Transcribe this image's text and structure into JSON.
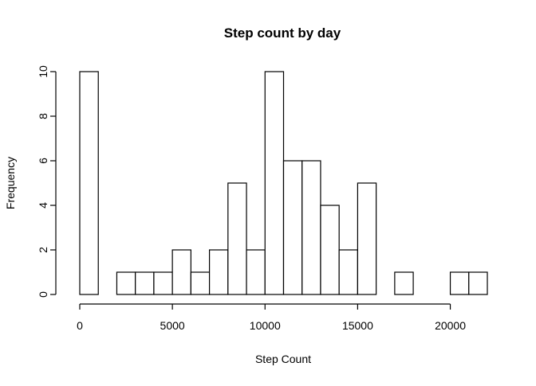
{
  "chart_data": {
    "type": "bar",
    "title": "Step count by day",
    "xlabel": "Step Count",
    "ylabel": "Frequency",
    "bin_width": 1000,
    "bins": [
      {
        "start": 0,
        "end": 1000,
        "count": 10
      },
      {
        "start": 1000,
        "end": 2000,
        "count": 0
      },
      {
        "start": 2000,
        "end": 3000,
        "count": 1
      },
      {
        "start": 3000,
        "end": 4000,
        "count": 1
      },
      {
        "start": 4000,
        "end": 5000,
        "count": 1
      },
      {
        "start": 5000,
        "end": 6000,
        "count": 2
      },
      {
        "start": 6000,
        "end": 7000,
        "count": 1
      },
      {
        "start": 7000,
        "end": 8000,
        "count": 2
      },
      {
        "start": 8000,
        "end": 9000,
        "count": 5
      },
      {
        "start": 9000,
        "end": 10000,
        "count": 2
      },
      {
        "start": 10000,
        "end": 11000,
        "count": 10
      },
      {
        "start": 11000,
        "end": 12000,
        "count": 6
      },
      {
        "start": 12000,
        "end": 13000,
        "count": 6
      },
      {
        "start": 13000,
        "end": 14000,
        "count": 4
      },
      {
        "start": 14000,
        "end": 15000,
        "count": 2
      },
      {
        "start": 15000,
        "end": 16000,
        "count": 5
      },
      {
        "start": 16000,
        "end": 17000,
        "count": 0
      },
      {
        "start": 17000,
        "end": 18000,
        "count": 1
      },
      {
        "start": 18000,
        "end": 19000,
        "count": 0
      },
      {
        "start": 19000,
        "end": 20000,
        "count": 0
      },
      {
        "start": 20000,
        "end": 21000,
        "count": 1
      },
      {
        "start": 21000,
        "end": 22000,
        "count": 1
      }
    ],
    "xlim": [
      0,
      22000
    ],
    "ylim": [
      0,
      10
    ],
    "x_ticks": [
      0,
      5000,
      10000,
      15000,
      20000
    ],
    "x_tick_labels": [
      "0",
      "5000",
      "10000",
      "15000",
      "20000"
    ],
    "y_ticks": [
      0,
      2,
      4,
      6,
      8,
      10
    ],
    "y_tick_labels": [
      "0",
      "2",
      "4",
      "6",
      "8",
      "10"
    ],
    "grid": false,
    "legend": "none"
  }
}
